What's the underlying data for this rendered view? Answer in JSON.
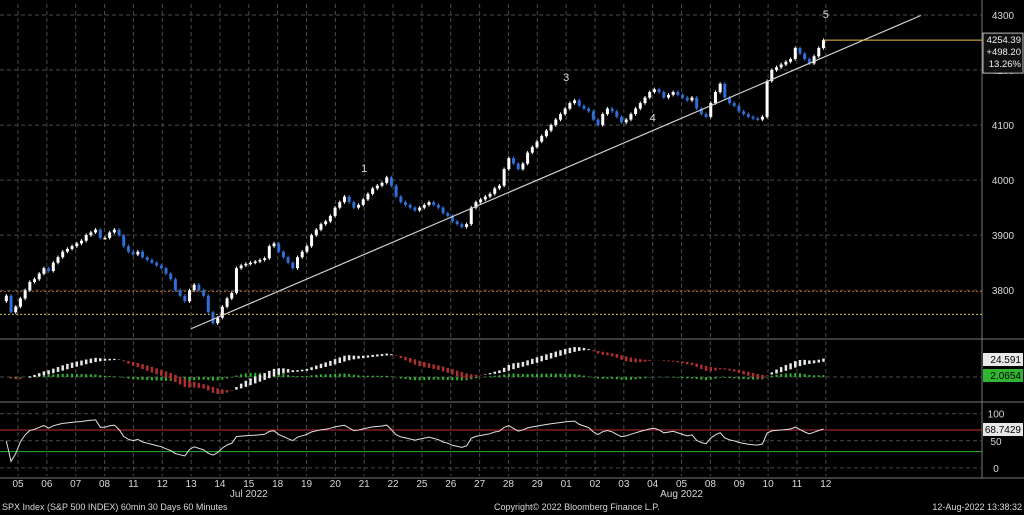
{
  "footer": {
    "security": "SPX Index (S&P 500 INDEX) 60min 30 Days 60 Minutes",
    "copyright": "Copyright© 2022 Bloomberg Finance L.P.",
    "timestamp": "12-Aug-2022 13:38:32"
  },
  "colors": {
    "background": "#000000",
    "grid": "#4a4a4a",
    "up_candle": "#ffffff",
    "down_candle": "#2f6fd6",
    "trendline": "#d0d0d0",
    "last_price_line": "#e8c04a",
    "level_line": "#d8c040",
    "macd_up": "#e8e8e8",
    "macd_down": "#b03030",
    "histogram": "#2fb52f",
    "rsi_line": "#e0e0e0",
    "rsi_upper": "#c03030",
    "rsi_lower": "#30b030"
  },
  "chart_data": [
    {
      "type": "candlestick",
      "panel": "price",
      "x_ticks": [
        "05",
        "06",
        "07",
        "08",
        "11",
        "12",
        "13",
        "14",
        "15",
        "18",
        "19",
        "20",
        "21",
        "22",
        "25",
        "26",
        "27",
        "28",
        "29",
        "01",
        "02",
        "03",
        "04",
        "05",
        "08",
        "09",
        "10",
        "11",
        "12"
      ],
      "month_labels": [
        {
          "label": "Jul 2022",
          "at": "15"
        },
        {
          "label": "Aug 2022",
          "at": "05"
        }
      ],
      "y_ticks": [
        3800,
        3900,
        4000,
        4100,
        4200,
        4300
      ],
      "ylim": [
        3715,
        4320
      ],
      "hourly_closes": [
        3790,
        3760,
        3770,
        3785,
        3800,
        3815,
        3820,
        3830,
        3840,
        3835,
        3850,
        3860,
        3870,
        3875,
        3880,
        3885,
        3890,
        3900,
        3905,
        3910,
        3895,
        3895,
        3905,
        3910,
        3900,
        3880,
        3870,
        3865,
        3870,
        3860,
        3855,
        3850,
        3845,
        3840,
        3830,
        3820,
        3800,
        3790,
        3780,
        3800,
        3810,
        3800,
        3790,
        3760,
        3740,
        3750,
        3770,
        3785,
        3795,
        3840,
        3845,
        3848,
        3850,
        3852,
        3855,
        3858,
        3880,
        3885,
        3870,
        3860,
        3850,
        3840,
        3860,
        3870,
        3880,
        3900,
        3910,
        3920,
        3925,
        3935,
        3950,
        3960,
        3970,
        3960,
        3950,
        3955,
        3965,
        3975,
        3985,
        3990,
        3995,
        4005,
        3990,
        3970,
        3960,
        3955,
        3950,
        3945,
        3950,
        3955,
        3960,
        3955,
        3950,
        3940,
        3935,
        3925,
        3920,
        3915,
        3920,
        3950,
        3960,
        3965,
        3970,
        3975,
        3985,
        3990,
        4020,
        4040,
        4030,
        4020,
        4030,
        4050,
        4060,
        4070,
        4080,
        4090,
        4100,
        4110,
        4120,
        4130,
        4140,
        4145,
        4135,
        4130,
        4125,
        4110,
        4100,
        4120,
        4130,
        4125,
        4115,
        4105,
        4110,
        4120,
        4130,
        4140,
        4150,
        4160,
        4165,
        4160,
        4150,
        4155,
        4160,
        4155,
        4150,
        4145,
        4150,
        4130,
        4120,
        4115,
        4140,
        4160,
        4175,
        4150,
        4140,
        4135,
        4125,
        4120,
        4115,
        4112,
        4110,
        4115,
        4180,
        4200,
        4205,
        4210,
        4215,
        4220,
        4240,
        4230,
        4220,
        4212,
        4225,
        4240,
        4254.39
      ],
      "wave_labels": [
        {
          "label": "1",
          "at": "21"
        },
        {
          "label": "3",
          "at": "01"
        },
        {
          "label": "4",
          "at": "04"
        },
        {
          "label": "5",
          "at": "12"
        }
      ],
      "trendline": {
        "from": {
          "x": "13",
          "y": 3730
        },
        "to": {
          "x": "12",
          "y": 4225
        }
      },
      "horizontal_levels": [
        3798,
        3756
      ],
      "last_price": {
        "value": "4254.39",
        "change": "+498.20",
        "pct": "13.26%"
      }
    },
    {
      "type": "macd",
      "panel": "macd",
      "labels": {
        "macd": "24.591",
        "signal": "2.0654"
      }
    },
    {
      "type": "line",
      "panel": "rsi",
      "y_ticks": [
        0,
        50,
        100
      ],
      "ylim": [
        -15,
        118
      ],
      "upper_level": 70,
      "lower_level": 30,
      "labels": {
        "rsi": "68.7429"
      }
    }
  ]
}
